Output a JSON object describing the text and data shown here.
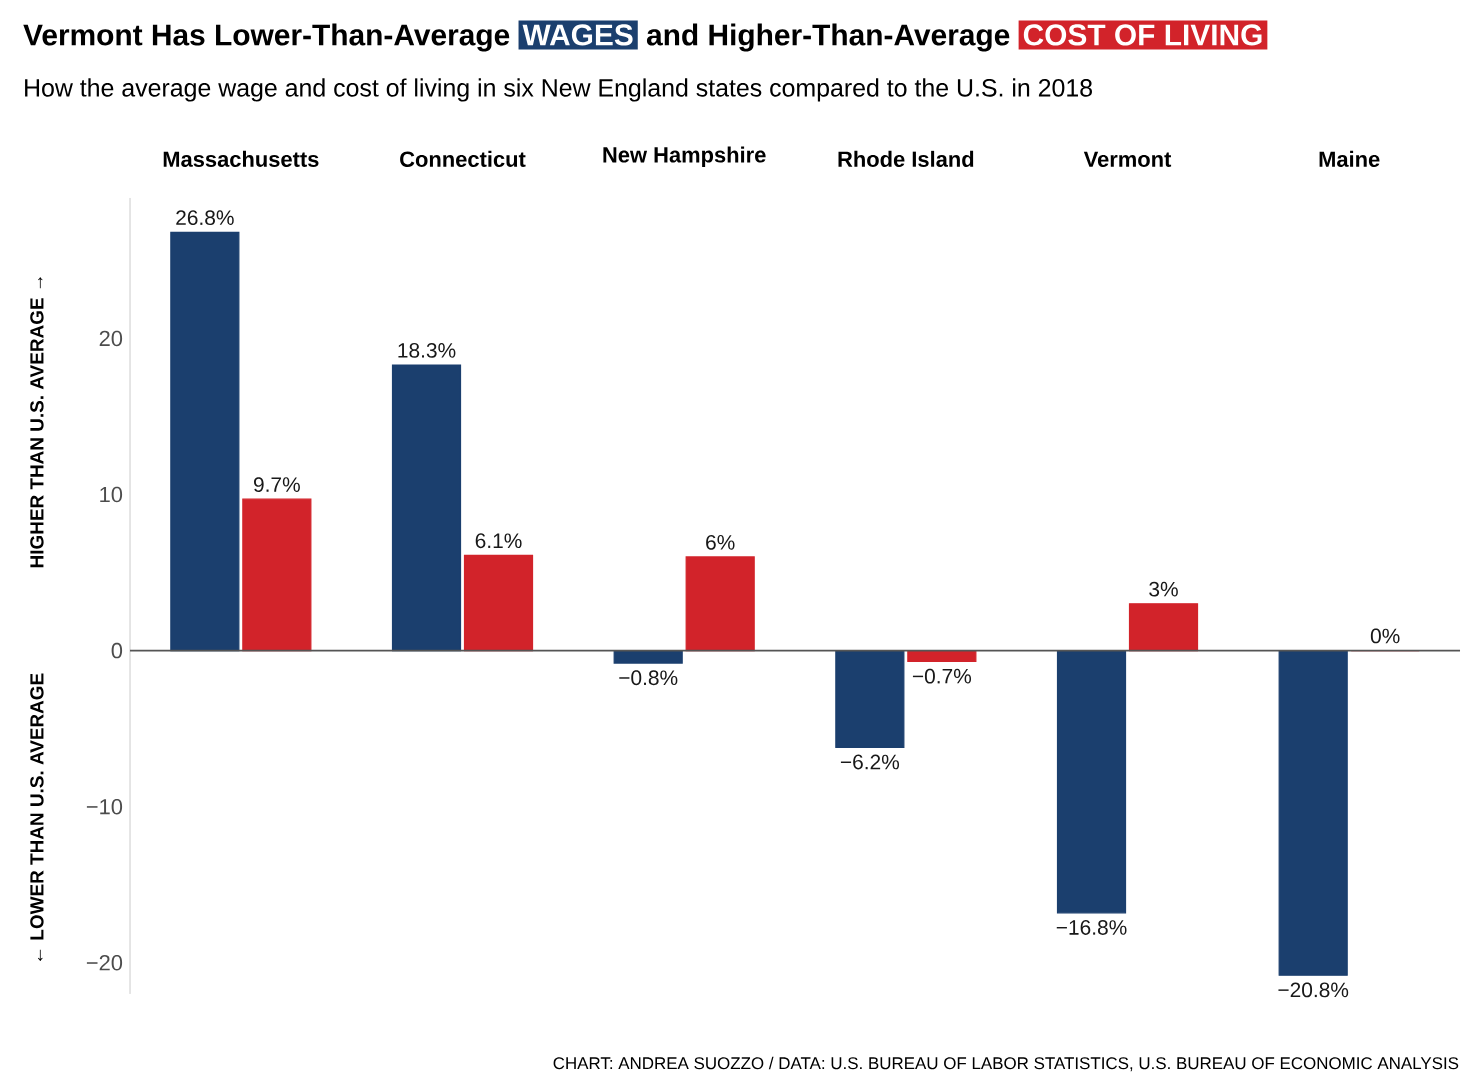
{
  "chart_data": {
    "type": "bar",
    "title": "Vermont Has Lower-Than-Average",
    "subtitle": "How the average wage and cost of living in six New England states compared to the U.S. in 2018",
    "ylabel": "HIGHER THAN U.S. AVERAGE →",
    "annotations": [
      " and Higher-Than-Average",
      "← LOWER THAN U.S. AVERAGE",
      "CHART: ANDREA SUOZZO / DATA: U.S. BUREAU OF LABOR STATISTICS, U.S. BUREAU OF ECONOMIC ANALYSIS"
    ],
    "categories": [
      "Massachusetts",
      "Connecticut",
      "New Hampshire",
      "Rhode Island",
      "Vermont",
      "Maine"
    ],
    "series": [
      {
        "name": "WAGES",
        "color": "#1b3f6e",
        "values": [
          26.8,
          18.3,
          -0.8,
          -6.2,
          -16.8,
          -20.8
        ],
        "value_labels": [
          "26.8%",
          "18.3%",
          "−0.8%",
          "−6.2%",
          "−16.8%",
          "−20.8%"
        ]
      },
      {
        "name": "COST OF LIVING",
        "color": "#d2232a",
        "values": [
          9.7,
          6.1,
          6,
          -0.7,
          3,
          0
        ],
        "value_labels": [
          "9.7%",
          "6.1%",
          "6%",
          "−0.7%",
          "3%",
          "0%"
        ]
      }
    ],
    "ylim": [
      -22,
      29
    ],
    "ref_lines": [
      {
        "axis": "y",
        "value": 0,
        "color": "#555555"
      }
    ],
    "yticks": [
      {
        "value": -20,
        "label": "−20"
      },
      {
        "value": -10,
        "label": "−10"
      },
      0,
      10,
      20
    ],
    "grid": false,
    "legend": false
  }
}
